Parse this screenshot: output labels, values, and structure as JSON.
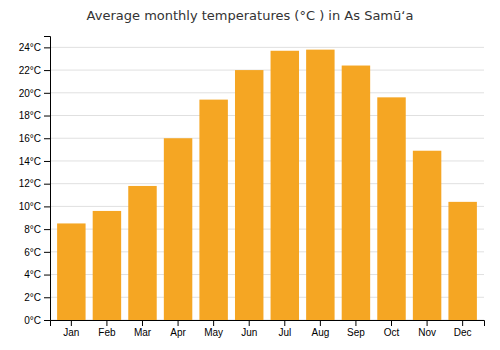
{
  "chart_data": {
    "type": "bar",
    "title": "Average monthly temperatures (°C ) in As Samūʻa",
    "categories": [
      "Jan",
      "Feb",
      "Mar",
      "Apr",
      "May",
      "Jun",
      "Jul",
      "Aug",
      "Sep",
      "Oct",
      "Nov",
      "Dec"
    ],
    "values": [
      8.5,
      9.6,
      11.8,
      16.0,
      19.4,
      22.0,
      23.7,
      23.8,
      22.4,
      19.6,
      14.9,
      10.4
    ],
    "color": "#F5A623",
    "ylim": [
      0,
      25
    ],
    "yticks": [
      {
        "value": 0,
        "label": "0°C"
      },
      {
        "value": 2,
        "label": "2°C"
      },
      {
        "value": 4,
        "label": "4°C"
      },
      {
        "value": 6,
        "label": "6°C"
      },
      {
        "value": 8,
        "label": "8°C"
      },
      {
        "value": 10,
        "label": "10°C"
      },
      {
        "value": 12,
        "label": "12°C"
      },
      {
        "value": 14,
        "label": "14°C"
      },
      {
        "value": 16,
        "label": "16°C"
      },
      {
        "value": 18,
        "label": "18°C"
      },
      {
        "value": 20,
        "label": "20°C"
      },
      {
        "value": 22,
        "label": "22°C"
      },
      {
        "value": 24,
        "label": "24°C"
      }
    ],
    "grid": true
  }
}
